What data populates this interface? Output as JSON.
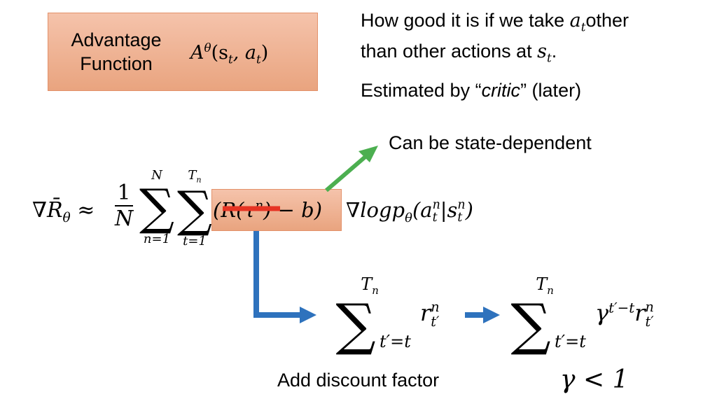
{
  "advantage": {
    "label_line1": "Advantage",
    "label_line2": "Function",
    "formula": "A^θ(s_t, a_t)",
    "formula_base": "A",
    "formula_sup": "θ",
    "formula_args": "(s",
    "formula_sub1": "t",
    "formula_mid": ", a",
    "formula_sub2": "t",
    "formula_end": ")"
  },
  "explanation": {
    "line1_pre": "How good it is if we take ",
    "line1_var": "a",
    "line1_sub": "t",
    "line1_post": "other",
    "line2_pre": "than other actions at ",
    "line2_var": "s",
    "line2_sub": "t",
    "line2_post": ".",
    "line3_pre": "Estimated by “",
    "line3_em": "critic",
    "line3_post": "” (later)"
  },
  "state_dependent_note": "Can be state-dependent",
  "gradient_formula": {
    "lhs": "∇R̄",
    "lhs_sub": "θ",
    "approx": "≈",
    "frac_num": "1",
    "frac_den": "N",
    "sigma": "∑",
    "sum1_upper": "N",
    "sum1_lower": "n=1",
    "sum2_upper": "T",
    "sum2_upper_sub": "n",
    "sum2_lower": "t=1",
    "reward_term": "(R(τ",
    "reward_sup": "n",
    "reward_close": ") − b)",
    "log_term": "∇logp",
    "log_sub": "θ",
    "log_args": "(a",
    "a_sup": "n",
    "a_sub": "t",
    "bar": "|s",
    "s_sup": "n",
    "s_sub": "t",
    "close": ")"
  },
  "reward_sum": {
    "upper": "T",
    "upper_sub": "n",
    "lower": "t′=t",
    "term": "r",
    "term_sup": "n",
    "term_sub": "t′"
  },
  "discounted_sum": {
    "upper": "T",
    "upper_sub": "n",
    "lower": "t′=t",
    "gamma": "γ",
    "gamma_sup": "t′−t",
    "term": "r",
    "term_sup": "n",
    "term_sub": "t′"
  },
  "discount_label": "Add discount factor",
  "gamma_condition": "γ < 1",
  "colors": {
    "box": "#eeb08f",
    "green_arrow": "#4caf50",
    "blue_arrow": "#2e72bd",
    "strike": "#e63323"
  }
}
